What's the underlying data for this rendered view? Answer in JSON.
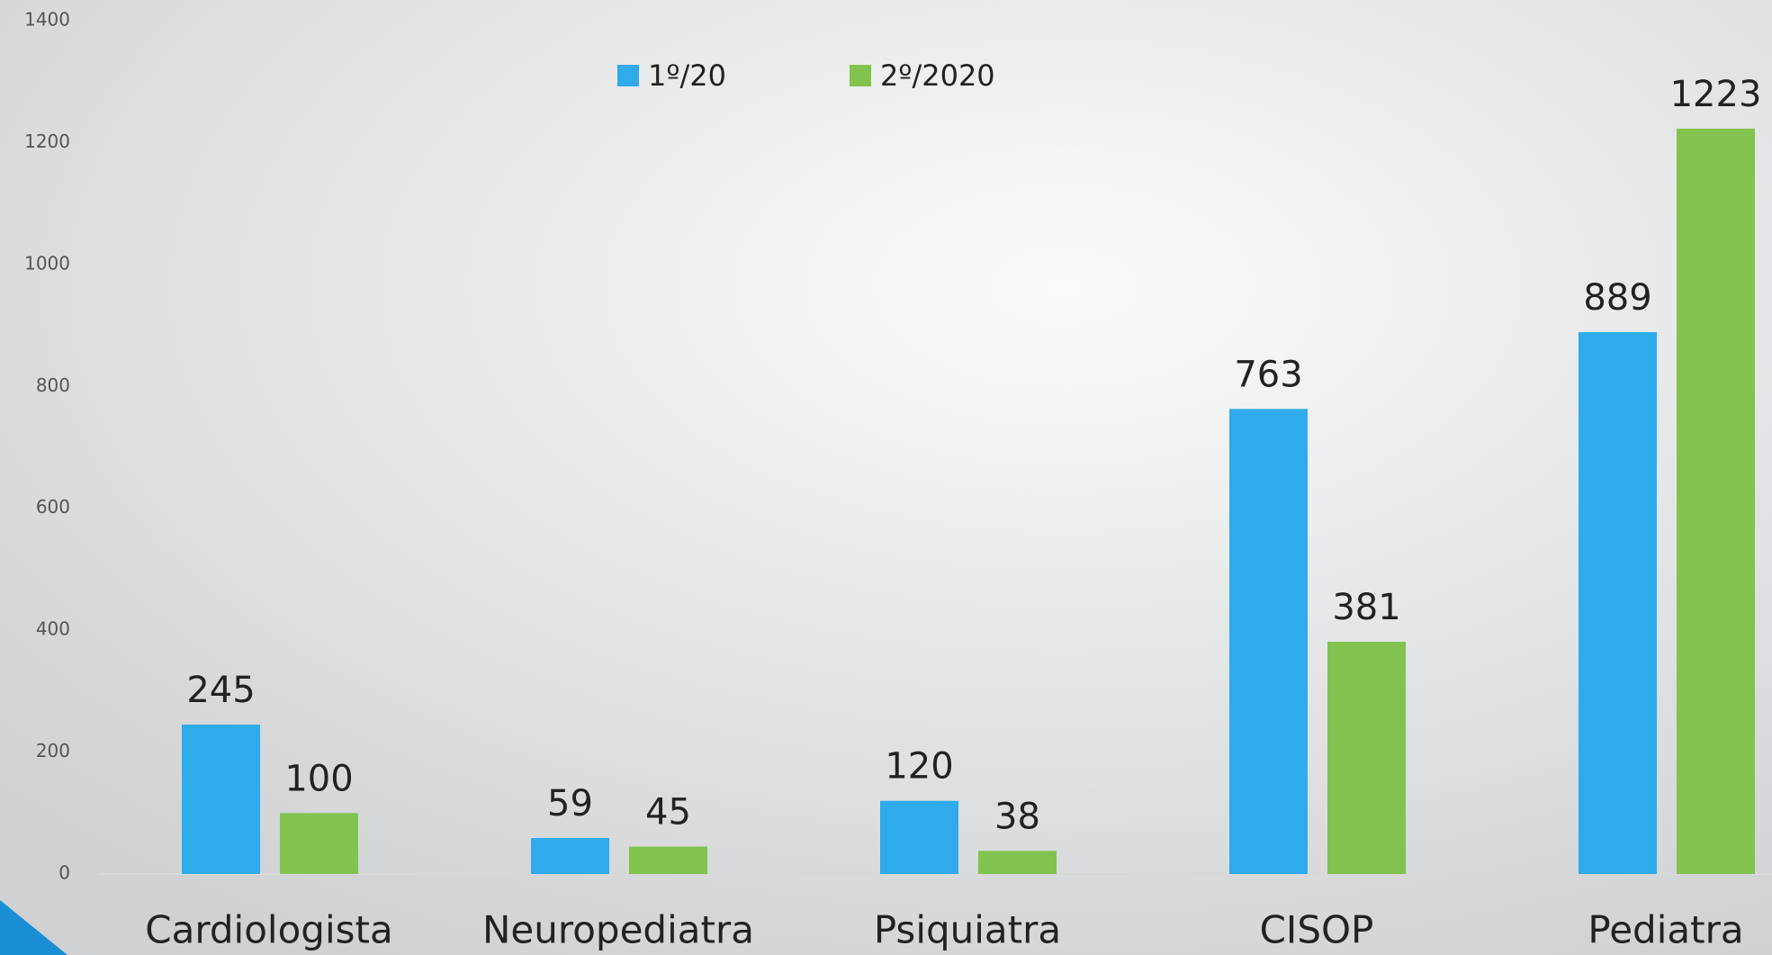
{
  "chart_data": {
    "type": "bar",
    "categories": [
      "Cardiologista",
      "Neuropediatra",
      "Psiquiatra",
      "CISOP",
      "Pediatra"
    ],
    "series": [
      {
        "name": "1º/20",
        "color": "#2faaea",
        "values": [
          245,
          59,
          120,
          763,
          889
        ]
      },
      {
        "name": "2º/2020",
        "color": "#82c34f",
        "values": [
          100,
          45,
          38,
          381,
          1223
        ]
      }
    ],
    "ylim": [
      0,
      1400
    ],
    "yticks": [
      0,
      200,
      400,
      600,
      800,
      1000,
      1200,
      1400
    ],
    "grid": false,
    "legend": "top"
  }
}
